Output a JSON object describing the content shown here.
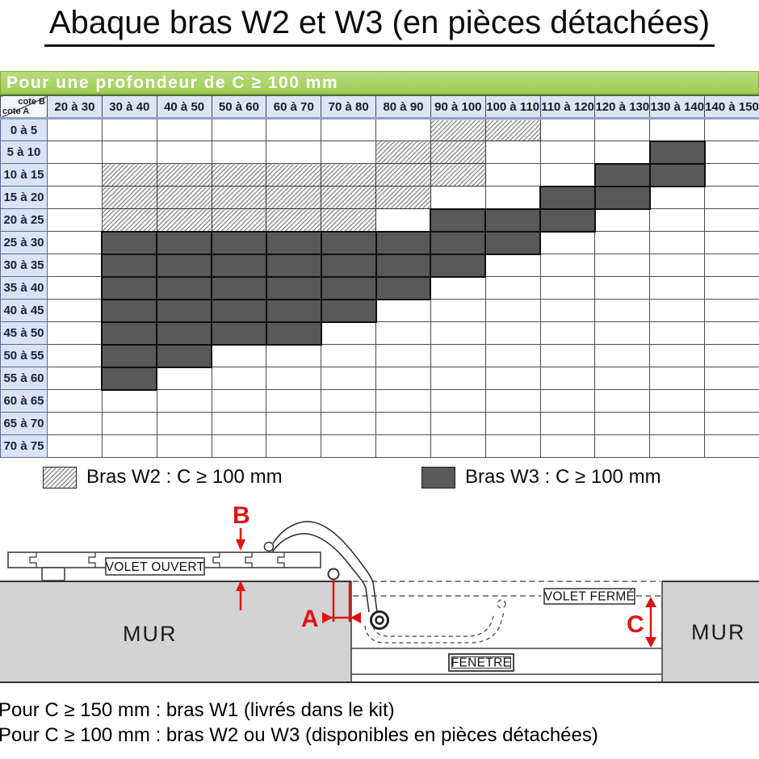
{
  "title": "Abaque bras W2 et W3 (en pièces détachées)",
  "banner": "Pour une profondeur de C ≥ 100 mm",
  "table": {
    "corner": {
      "top": "cote B",
      "bottom": "cote A"
    },
    "columns": [
      "20 à 30",
      "30 à 40",
      "40 à 50",
      "50 à 60",
      "60 à 70",
      "70 à 80",
      "80 à 90",
      "90 à 100",
      "100 à 110",
      "110 à 120",
      "120 à 130",
      "130 à 140",
      "140 à 150"
    ],
    "rows": [
      {
        "label": "0 à 5",
        "cells": [
          "",
          "",
          "",
          "",
          "",
          "",
          "",
          "W2",
          "W2",
          "",
          "",
          "",
          ""
        ]
      },
      {
        "label": "5 à 10",
        "cells": [
          "",
          "",
          "",
          "",
          "",
          "",
          "W2",
          "W2",
          "",
          "",
          "",
          "W3",
          ""
        ]
      },
      {
        "label": "10 à 15",
        "cells": [
          "",
          "W2",
          "W2",
          "W2",
          "W2",
          "W2",
          "W2",
          "W2",
          "",
          "",
          "W3",
          "W3",
          ""
        ]
      },
      {
        "label": "15 à 20",
        "cells": [
          "",
          "W2",
          "W2",
          "W2",
          "W2",
          "W2",
          "W2",
          "",
          "",
          "W3",
          "W3",
          "",
          ""
        ]
      },
      {
        "label": "20 à 25",
        "cells": [
          "",
          "W2",
          "W2",
          "W2",
          "W2",
          "W2",
          "",
          "W3",
          "W3",
          "W3",
          "",
          "",
          ""
        ]
      },
      {
        "label": "25 à 30",
        "cells": [
          "",
          "W3",
          "W3",
          "W3",
          "W3",
          "W3",
          "W3",
          "W3",
          "W3",
          "",
          "",
          "",
          ""
        ]
      },
      {
        "label": "30 à 35",
        "cells": [
          "",
          "W3",
          "W3",
          "W3",
          "W3",
          "W3",
          "W3",
          "W3",
          "",
          "",
          "",
          "",
          ""
        ]
      },
      {
        "label": "35 à 40",
        "cells": [
          "",
          "W3",
          "W3",
          "W3",
          "W3",
          "W3",
          "W3",
          "",
          "",
          "",
          "",
          "",
          ""
        ]
      },
      {
        "label": "40 à 45",
        "cells": [
          "",
          "W3",
          "W3",
          "W3",
          "W3",
          "W3",
          "",
          "",
          "",
          "",
          "",
          "",
          ""
        ]
      },
      {
        "label": "45 à 50",
        "cells": [
          "",
          "W3",
          "W3",
          "W3",
          "W3",
          "",
          "",
          "",
          "",
          "",
          "",
          "",
          ""
        ]
      },
      {
        "label": "50 à 55",
        "cells": [
          "",
          "W3",
          "W3",
          "",
          "",
          "",
          "",
          "",
          "",
          "",
          "",
          "",
          ""
        ]
      },
      {
        "label": "55 à 60",
        "cells": [
          "",
          "W3",
          "",
          "",
          "",
          "",
          "",
          "",
          "",
          "",
          "",
          "",
          ""
        ]
      },
      {
        "label": "60 à 65",
        "cells": [
          "",
          "",
          "",
          "",
          "",
          "",
          "",
          "",
          "",
          "",
          "",
          "",
          ""
        ]
      },
      {
        "label": "65 à 70",
        "cells": [
          "",
          "",
          "",
          "",
          "",
          "",
          "",
          "",
          "",
          "",
          "",
          "",
          ""
        ]
      },
      {
        "label": "70 à 75",
        "cells": [
          "",
          "",
          "",
          "",
          "",
          "",
          "",
          "",
          "",
          "",
          "",
          "",
          ""
        ]
      }
    ]
  },
  "legend": [
    {
      "type": "W2",
      "label": "Bras W2 : C ≥ 100 mm"
    },
    {
      "type": "W3",
      "label": "Bras W3 : C ≥ 100 mm"
    }
  ],
  "diagram": {
    "volet_ouvert": "VOLET OUVERT",
    "volet_ferme": "VOLET FERMÉ",
    "fenetre": "FENETRE",
    "mur_left": "MUR",
    "mur_right": "MUR",
    "dim_a": "A",
    "dim_b": "B",
    "dim_c": "C"
  },
  "notes": [
    "Pour C ≥ 150 mm : bras W1 (livrés dans le kit)",
    "Pour C ≥ 100 mm : bras W2 ou W3 (disponibles en pièces détachées)"
  ],
  "colors": {
    "banner_green": "#a0cf53",
    "banner_light": "#b6db80",
    "header_blue": "#dde5f2",
    "row_label_blue": "#d9e3f5",
    "w3_dark": "#595959",
    "hatch_gray": "#8f8f8f",
    "dimension_red": "#e01414",
    "wall_gray": "#d3d3d3"
  }
}
